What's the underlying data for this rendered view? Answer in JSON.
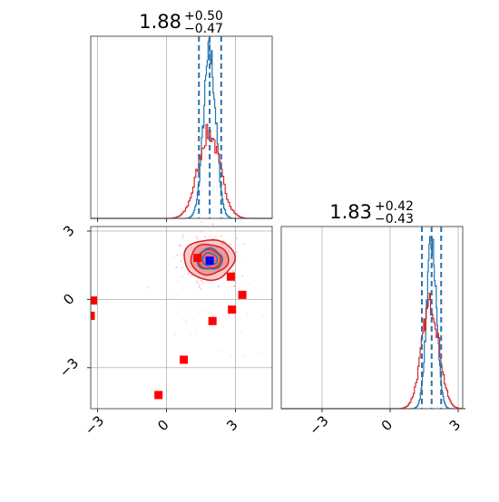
{
  "chart_data": [
    {
      "type": "histogram",
      "panel": "marginal-param-1",
      "title": {
        "median": "1.88",
        "upper": "+0.50",
        "lower": "−0.47"
      },
      "xlim": [
        -3.3,
        4.6
      ],
      "grid": true,
      "x_ticks": [
        -3,
        0,
        3
      ],
      "series": [
        {
          "color": "#1f77b4",
          "center": 1.88,
          "sigma": 0.27,
          "peak": 0.9,
          "quantiles": [
            1.41,
            1.88,
            2.38
          ]
        },
        {
          "color": "#d62728",
          "center": 1.85,
          "sigma": 0.48,
          "peak": 0.47,
          "quantiles": [
            1.41,
            1.88,
            2.38
          ]
        }
      ]
    },
    {
      "type": "histogram",
      "panel": "marginal-param-2",
      "title": {
        "median": "1.83",
        "upper": "+0.42",
        "lower": "−0.43"
      },
      "xlim": [
        -4.8,
        3.2
      ],
      "grid": true,
      "x_ticks": [
        -3,
        0,
        3
      ],
      "x_tick_labels": [
        "−3",
        "0",
        "3"
      ],
      "series": [
        {
          "color": "#1f77b4",
          "center": 1.83,
          "sigma": 0.22,
          "peak": 0.9,
          "quantiles": [
            1.4,
            1.83,
            2.25
          ]
        },
        {
          "color": "#d62728",
          "center": 1.78,
          "sigma": 0.38,
          "peak": 0.58,
          "quantiles": [
            1.4,
            1.83,
            2.25
          ]
        }
      ]
    },
    {
      "type": "scatter",
      "panel": "joint-param1-param2",
      "xlim": [
        -3.3,
        4.6
      ],
      "ylim": [
        -4.8,
        3.2
      ],
      "grid": true,
      "x_ticks": [
        -3,
        0,
        3
      ],
      "x_tick_labels": [
        "−3",
        "0",
        "3"
      ],
      "y_ticks": [
        -3,
        0,
        3
      ],
      "y_tick_labels": [
        "−3",
        "0",
        "3"
      ],
      "contours": {
        "red": {
          "center": [
            1.86,
            1.76
          ],
          "radii": [
            [
              0.5,
              0.42
            ],
            [
              0.82,
              0.66
            ],
            [
              1.1,
              0.88
            ]
          ],
          "fill": "#f4a3a3",
          "line": "#d62728"
        },
        "blue": {
          "center": [
            1.88,
            1.76
          ],
          "radii": [
            [
              0.32,
              0.27
            ],
            [
              0.55,
              0.46
            ]
          ],
          "line": "#1f77b4"
        }
      },
      "red_points": [
        [
          -3.2,
          -0.05
        ],
        [
          -3.3,
          -0.72
        ],
        [
          1.35,
          1.82
        ],
        [
          2.8,
          1.0
        ],
        [
          3.3,
          0.2
        ],
        [
          2.85,
          -0.45
        ],
        [
          2.0,
          -0.95
        ],
        [
          0.75,
          -2.65
        ],
        [
          -0.35,
          -4.2
        ]
      ],
      "blue_points": [
        [
          1.88,
          1.7
        ]
      ],
      "point_colors": {
        "red": "#ff0000",
        "blue": "#0000ff"
      }
    }
  ]
}
